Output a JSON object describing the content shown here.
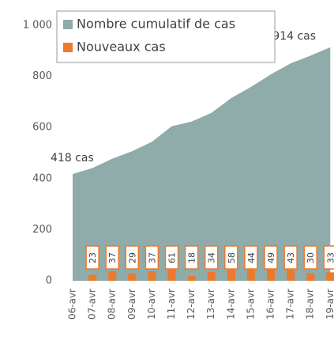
{
  "chart_data": {
    "type": "area-bar",
    "categories": [
      "06-avr",
      "07-avr",
      "08-avr",
      "09-avr",
      "10-avr",
      "11-avr",
      "12-avr",
      "13-avr",
      "14-avr",
      "15-avr",
      "16-avr",
      "17-avr",
      "18-avr",
      "19-avr"
    ],
    "series": [
      {
        "name": "Nombre cumulatif de cas",
        "color": "#8fabaa",
        "kind": "area",
        "values": [
          418,
          441,
          478,
          507,
          544,
          605,
          623,
          657,
          715,
          759,
          808,
          851,
          881,
          914
        ],
        "value_labels": [
          "418 cas",
          null,
          null,
          null,
          null,
          null,
          null,
          null,
          null,
          null,
          null,
          null,
          null,
          "914 cas"
        ]
      },
      {
        "name": "Nouveaux cas",
        "color": "#ec7a2c",
        "kind": "bar",
        "values": [
          null,
          23,
          37,
          29,
          37,
          61,
          18,
          34,
          58,
          44,
          49,
          43,
          30,
          33
        ]
      }
    ],
    "ylim": [
      0,
      1000
    ],
    "yticks": [
      0,
      200,
      400,
      600,
      800,
      {
        "value": 1000,
        "label": "1 000"
      }
    ],
    "grid": false
  }
}
